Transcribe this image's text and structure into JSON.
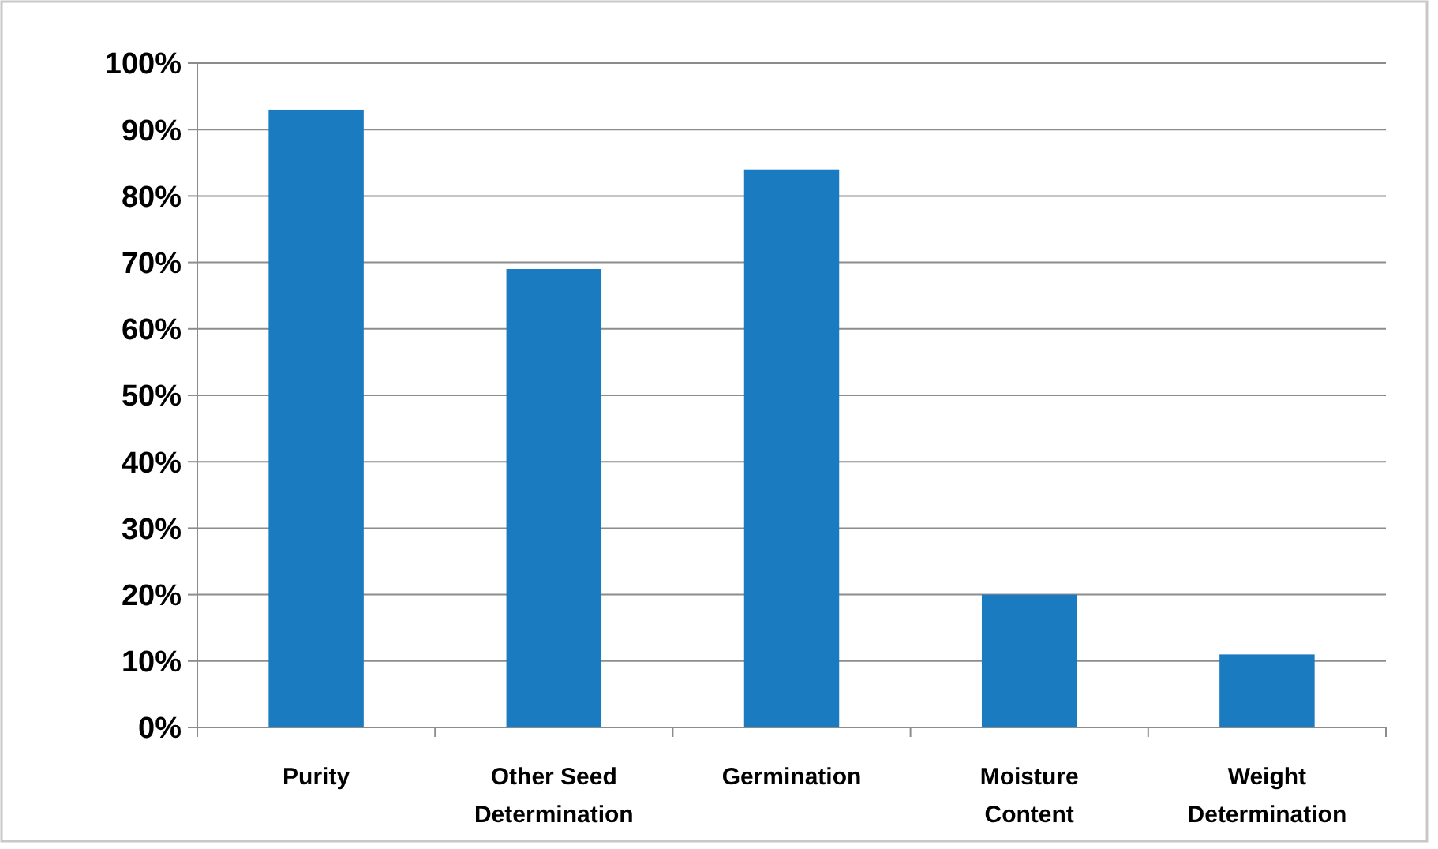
{
  "chart_data": {
    "type": "bar",
    "categories": [
      "Purity",
      "Other Seed\nDetermination",
      "Germination",
      "Moisture\nContent",
      "Weight\nDetermination"
    ],
    "values": [
      93,
      69,
      84,
      20,
      11
    ],
    "color": "#1b7bc0",
    "ylim": [
      0,
      100
    ],
    "yticks": [
      {
        "value": 0,
        "label": "0%"
      },
      {
        "value": 10,
        "label": "10%"
      },
      {
        "value": 20,
        "label": "20%"
      },
      {
        "value": 30,
        "label": "30%"
      },
      {
        "value": 40,
        "label": "40%"
      },
      {
        "value": 50,
        "label": "50%"
      },
      {
        "value": 60,
        "label": "60%"
      },
      {
        "value": 70,
        "label": "70%"
      },
      {
        "value": 80,
        "label": "80%"
      },
      {
        "value": 90,
        "label": "90%"
      },
      {
        "value": 100,
        "label": "100%"
      }
    ],
    "grid": true
  }
}
